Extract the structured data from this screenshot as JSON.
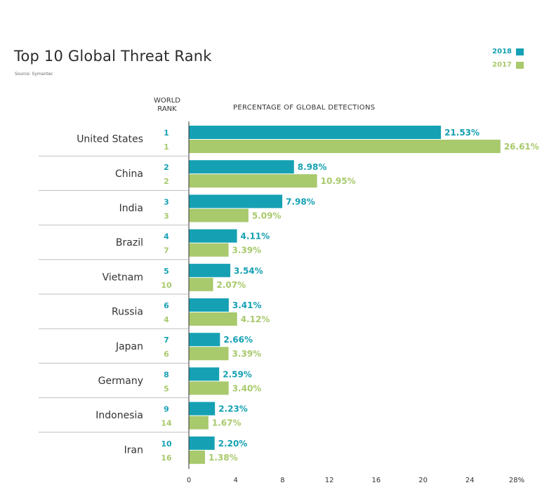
{
  "colors": {
    "series_2018": "#15a1b3",
    "series_2017": "#a8c96c",
    "divider": "#bfbfbf",
    "axis": "#333333"
  },
  "chart_data": {
    "type": "bar",
    "orientation": "horizontal",
    "title": "Top 10 Global Threat Rank",
    "subtitle": "Source: Symantec",
    "xlabel": "PERCENTAGE OF GLOBAL DETECTIONS",
    "rank_header": "WORLD RANK",
    "xlim": [
      0,
      28
    ],
    "x_ticks": [
      "0",
      "4",
      "8",
      "12",
      "16",
      "20",
      "24",
      "28%"
    ],
    "categories": [
      "United States",
      "China",
      "India",
      "Brazil",
      "Vietnam",
      "Russia",
      "Japan",
      "Germany",
      "Indonesia",
      "Iran"
    ],
    "series": [
      {
        "name": "2018",
        "values": [
          21.53,
          8.98,
          7.98,
          4.11,
          3.54,
          3.41,
          2.66,
          2.59,
          2.23,
          2.2
        ],
        "labels": [
          "21.53%",
          "8.98%",
          "7.98%",
          "4.11%",
          "3.54%",
          "3.41%",
          "2.66%",
          "2.59%",
          "2.23%",
          "2.20%"
        ],
        "ranks": [
          "1",
          "2",
          "3",
          "4",
          "5",
          "6",
          "7",
          "8",
          "9",
          "10"
        ]
      },
      {
        "name": "2017",
        "values": [
          26.61,
          10.95,
          5.09,
          3.39,
          2.07,
          4.12,
          3.39,
          3.4,
          1.67,
          1.38
        ],
        "labels": [
          "26.61%",
          "10.95%",
          "5.09%",
          "3.39%",
          "2.07%",
          "4.12%",
          "3.39%",
          "3.40%",
          "1.67%",
          "1.38%"
        ],
        "ranks": [
          "1",
          "2",
          "3",
          "7",
          "10",
          "4",
          "6",
          "5",
          "14",
          "16"
        ]
      }
    ],
    "legend_position": "top-right",
    "grid": false
  }
}
